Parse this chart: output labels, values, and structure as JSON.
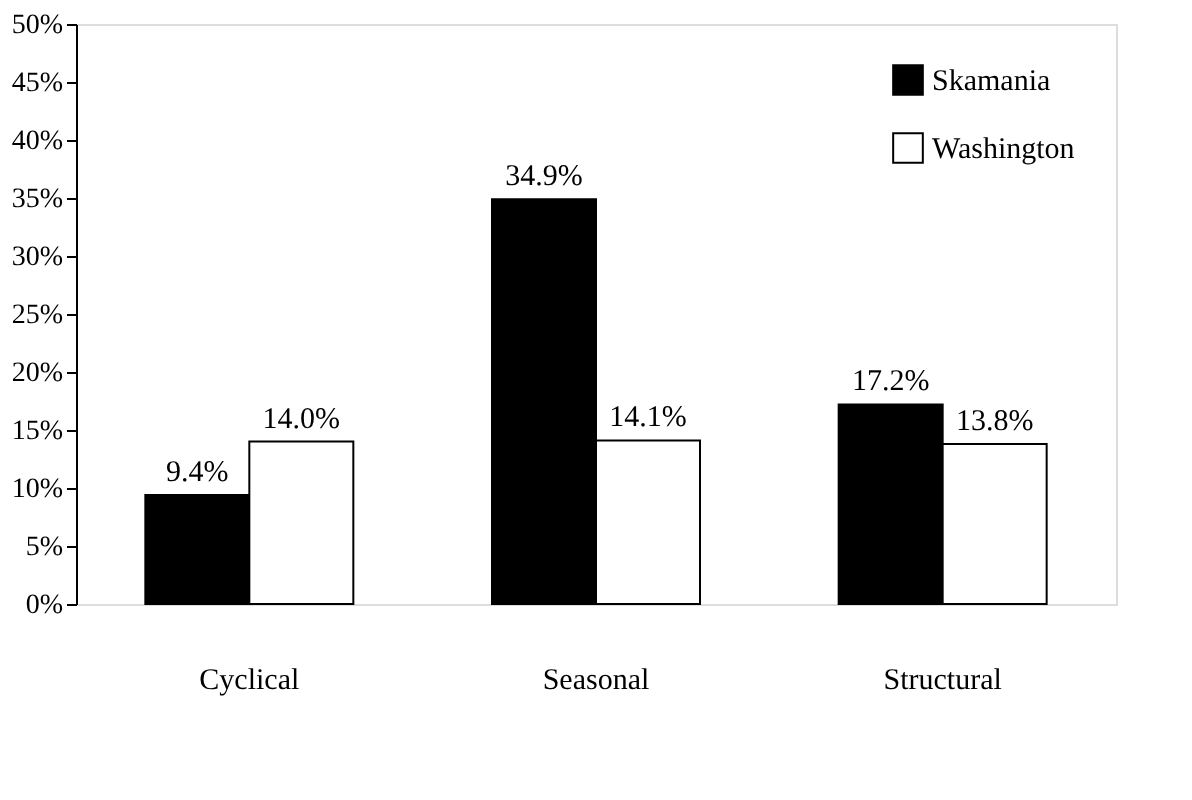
{
  "chart_data": {
    "type": "bar",
    "categories": [
      "Cyclical",
      "Seasonal",
      "Structural"
    ],
    "series": [
      {
        "name": "Skamania",
        "color": "#000000",
        "values": [
          9.4,
          34.9,
          17.2
        ],
        "value_labels": [
          "9.4%",
          "34.9%",
          "17.2%"
        ]
      },
      {
        "name": "Washington",
        "color": "#ffffff",
        "values": [
          14.0,
          14.1,
          13.8
        ],
        "value_labels": [
          "14.0%",
          "14.1%",
          "13.8%"
        ]
      }
    ],
    "ylim": [
      0,
      50
    ],
    "yticks": [
      {
        "value": 0,
        "label": "0%"
      },
      {
        "value": 5,
        "label": "5%"
      },
      {
        "value": 10,
        "label": "10%"
      },
      {
        "value": 15,
        "label": "15%"
      },
      {
        "value": 20,
        "label": "20%"
      },
      {
        "value": 25,
        "label": "25%"
      },
      {
        "value": 30,
        "label": "30%"
      },
      {
        "value": 35,
        "label": "35%"
      },
      {
        "value": 40,
        "label": "40%"
      },
      {
        "value": 45,
        "label": "45%"
      },
      {
        "value": 50,
        "label": "50%"
      }
    ],
    "grid": false,
    "legend": "top right"
  }
}
